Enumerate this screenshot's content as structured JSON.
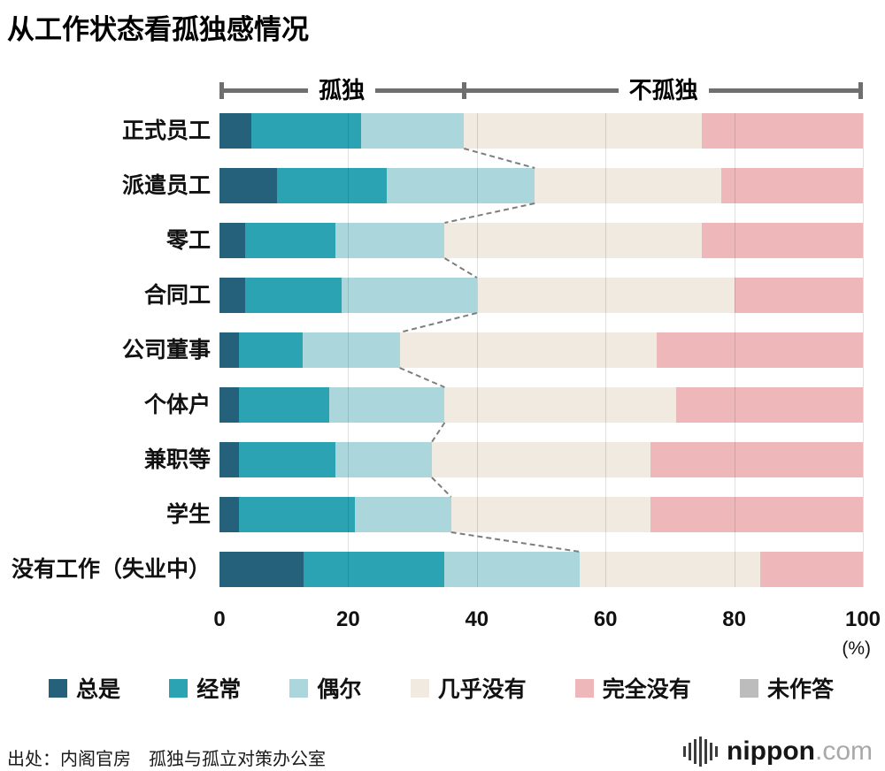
{
  "title": "从工作状态看孤独感情况",
  "groups": {
    "lonely": "孤独",
    "not_lonely": "不孤独",
    "divider_percent": 38
  },
  "chart_data": {
    "type": "bar",
    "stacked": true,
    "orientation": "horizontal",
    "unit": "(%)",
    "xticks": [
      0,
      20,
      40,
      60,
      80,
      100
    ],
    "xlim": [
      0,
      100
    ],
    "grid": true,
    "legend_position": "bottom",
    "categories": [
      "正式员工",
      "派遣员工",
      "零工",
      "合同工",
      "公司董事",
      "个体户",
      "兼职等",
      "学生",
      "没有工作（失业中）"
    ],
    "series": [
      {
        "name": "总是",
        "color": "#26617c",
        "values": [
          5,
          9,
          4,
          4,
          3,
          3,
          3,
          3,
          13
        ]
      },
      {
        "name": "经常",
        "color": "#2ba3b3",
        "values": [
          17,
          17,
          14,
          15,
          10,
          14,
          15,
          18,
          22
        ]
      },
      {
        "name": "偶尔",
        "color": "#abd7dc",
        "values": [
          16,
          23,
          17,
          21,
          15,
          18,
          15,
          15,
          21
        ]
      },
      {
        "name": "几乎没有",
        "color": "#f0eae1",
        "values": [
          37,
          29,
          40,
          40,
          40,
          36,
          34,
          31,
          28
        ]
      },
      {
        "name": "完全没有",
        "color": "#eeb7ba",
        "values": [
          25,
          22,
          25,
          20,
          32,
          29,
          33,
          33,
          16
        ]
      },
      {
        "name": "未作答",
        "color": "#bcbcbc",
        "values": [
          0,
          0,
          0,
          0,
          0,
          0,
          0,
          0,
          0
        ]
      }
    ]
  },
  "source": "出处：内阁官房　孤独与孤立对策办公室",
  "logo": {
    "brand": "nippon",
    "tld": ".com"
  }
}
